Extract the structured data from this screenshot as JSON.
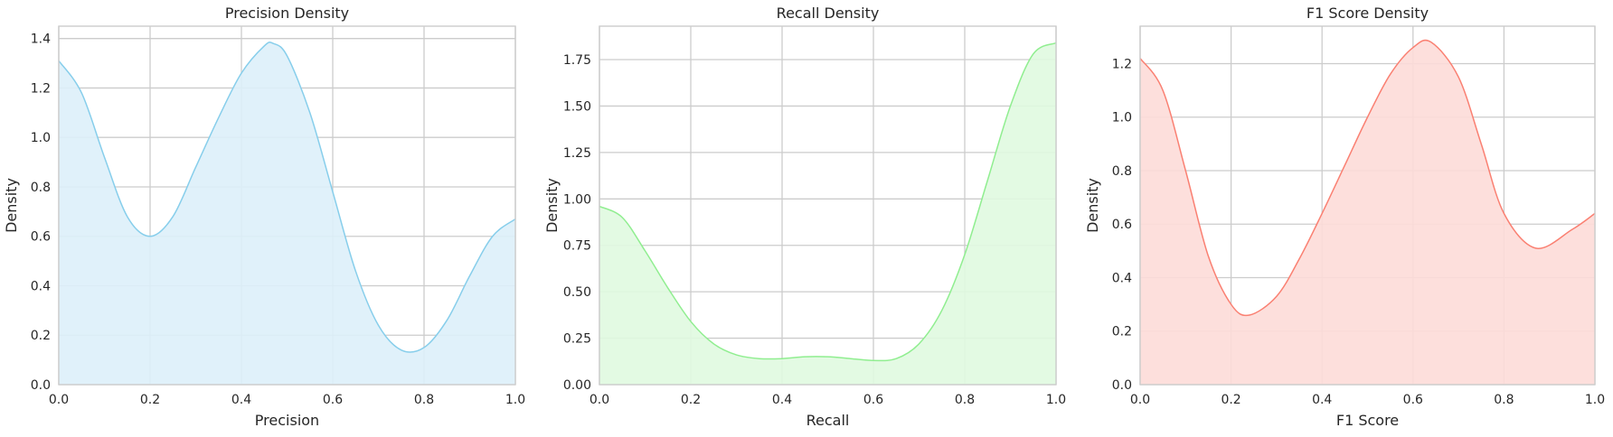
{
  "chart_data": [
    {
      "type": "area",
      "title": "Precision Density",
      "xlabel": "Precision",
      "ylabel": "Density",
      "xlim": [
        0,
        1
      ],
      "ylim": [
        0,
        1.45
      ],
      "xticks": [
        "0.0",
        "0.2",
        "0.4",
        "0.6",
        "0.8",
        "1.0"
      ],
      "yticks": [
        "0.0",
        "0.2",
        "0.4",
        "0.6",
        "0.8",
        "1.0",
        "1.2",
        "1.4"
      ],
      "grid": true,
      "line_color": "#87ceeb",
      "fill_color": "#ddf0f9",
      "x": [
        0,
        0.05,
        0.1,
        0.15,
        0.2,
        0.25,
        0.3,
        0.35,
        0.4,
        0.45,
        0.47,
        0.5,
        0.55,
        0.6,
        0.65,
        0.7,
        0.75,
        0.8,
        0.85,
        0.9,
        0.95,
        1.0
      ],
      "y": [
        1.31,
        1.18,
        0.92,
        0.68,
        0.6,
        0.68,
        0.88,
        1.08,
        1.26,
        1.37,
        1.38,
        1.33,
        1.1,
        0.78,
        0.46,
        0.24,
        0.14,
        0.15,
        0.26,
        0.44,
        0.6,
        0.67
      ]
    },
    {
      "type": "area",
      "title": "Recall Density",
      "xlabel": "Recall",
      "ylabel": "Density",
      "xlim": [
        0,
        1
      ],
      "ylim": [
        0,
        1.93
      ],
      "xticks": [
        "0.0",
        "0.2",
        "0.4",
        "0.6",
        "0.8",
        "1.0"
      ],
      "yticks": [
        "0.00",
        "0.25",
        "0.50",
        "0.75",
        "1.00",
        "1.25",
        "1.50",
        "1.75"
      ],
      "grid": true,
      "line_color": "#90ee90",
      "fill_color": "#e0f9e0",
      "x": [
        0,
        0.05,
        0.1,
        0.15,
        0.2,
        0.25,
        0.3,
        0.35,
        0.4,
        0.45,
        0.5,
        0.55,
        0.6,
        0.65,
        0.7,
        0.75,
        0.8,
        0.85,
        0.9,
        0.95,
        1.0
      ],
      "y": [
        0.96,
        0.9,
        0.72,
        0.52,
        0.34,
        0.22,
        0.16,
        0.14,
        0.14,
        0.15,
        0.15,
        0.14,
        0.13,
        0.14,
        0.22,
        0.4,
        0.7,
        1.1,
        1.5,
        1.78,
        1.84
      ]
    },
    {
      "type": "area",
      "title": "F1 Score Density",
      "xlabel": "F1 Score",
      "ylabel": "Density",
      "xlim": [
        0,
        1
      ],
      "ylim": [
        0,
        1.34
      ],
      "xticks": [
        "0.0",
        "0.2",
        "0.4",
        "0.6",
        "0.8",
        "1.0"
      ],
      "yticks": [
        "0.0",
        "0.2",
        "0.4",
        "0.6",
        "0.8",
        "1.0",
        "1.2"
      ],
      "grid": true,
      "line_color": "#fa8072",
      "fill_color": "#fddcd8",
      "x": [
        0,
        0.05,
        0.1,
        0.15,
        0.2,
        0.24,
        0.3,
        0.35,
        0.4,
        0.45,
        0.5,
        0.55,
        0.6,
        0.64,
        0.7,
        0.75,
        0.8,
        0.87,
        0.95,
        1.0
      ],
      "y": [
        1.22,
        1.1,
        0.8,
        0.48,
        0.3,
        0.26,
        0.33,
        0.47,
        0.64,
        0.82,
        1.0,
        1.16,
        1.26,
        1.28,
        1.15,
        0.9,
        0.64,
        0.51,
        0.58,
        0.64
      ]
    }
  ]
}
